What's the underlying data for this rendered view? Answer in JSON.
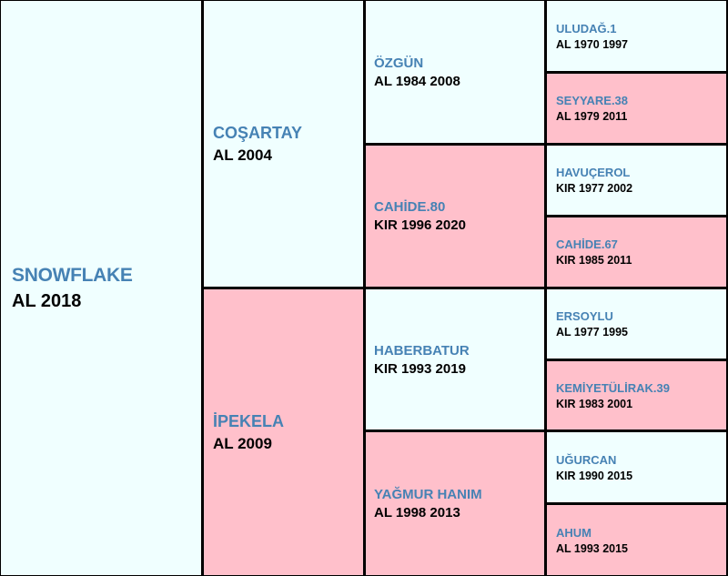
{
  "pedigree": {
    "subject": {
      "name": "SNOWFLAKE",
      "info": "AL 2018"
    },
    "sire": {
      "name": "COŞARTAY",
      "info": "AL 2004"
    },
    "dam": {
      "name": "İPEKELA",
      "info": "AL 2009"
    },
    "sire_sire": {
      "name": "ÖZGÜN",
      "info": "AL 1984 2008"
    },
    "sire_dam": {
      "name": "CAHİDE.80",
      "info": "KIR 1996 2020"
    },
    "dam_sire": {
      "name": "HABERBATUR",
      "info": "KIR 1993 2019"
    },
    "dam_dam": {
      "name": "YAĞMUR HANIM",
      "info": "AL 1998 2013"
    },
    "ggp": [
      {
        "name": "ULUDAĞ.1",
        "info": "AL 1970 1997"
      },
      {
        "name": "SEYYARE.38",
        "info": "AL 1979 2011"
      },
      {
        "name": "HAVUÇEROL",
        "info": "KIR 1977 2002"
      },
      {
        "name": "CAHİDE.67",
        "info": "KIR 1985 2011"
      },
      {
        "name": "ERSOYLU",
        "info": "AL 1977 1995"
      },
      {
        "name": "KEMİYETÜLİRAK.39",
        "info": "KIR 1983 2001"
      },
      {
        "name": "UĞURCAN",
        "info": "KIR 1990 2015"
      },
      {
        "name": "AHUM",
        "info": "AL 1993 2015"
      }
    ]
  },
  "colors": {
    "male_bg": "#f0ffff",
    "female_bg": "#ffc0cb",
    "name_text": "#4682b4",
    "info_text": "#000000",
    "border": "#000000"
  }
}
